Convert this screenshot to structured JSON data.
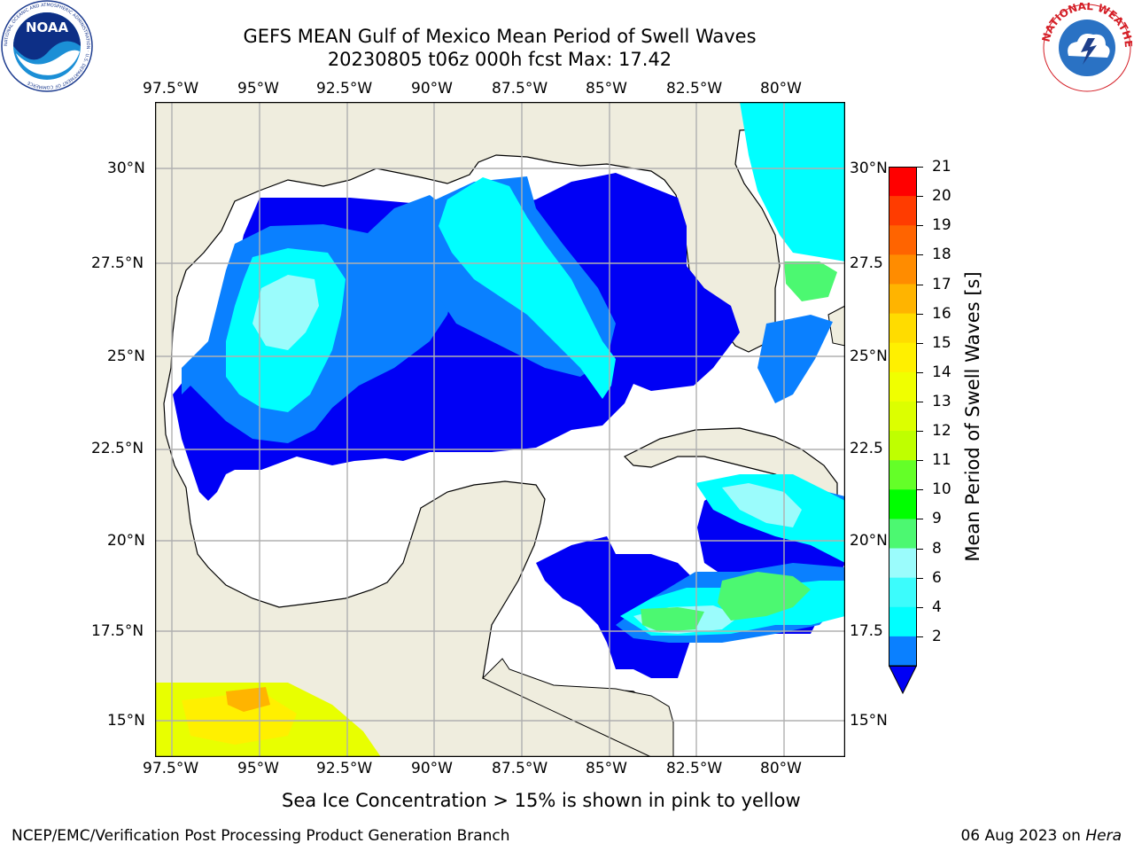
{
  "header": {
    "title_line1": "GEFS MEAN Gulf of Mexico Mean Period of Swell Waves",
    "title_line2": "20230805 t06z 000h fcst   Max: 17.42"
  },
  "logos": {
    "left": "NOAA",
    "left_ring": "NATIONAL OCEANIC AND ATMOSPHERIC ADMINISTRATION · U.S. DEPARTMENT OF COMMERCE",
    "right_ring": "NATIONAL WEATHER SERVICE"
  },
  "map": {
    "lon_labels": [
      "97.5°W",
      "95°W",
      "92.5°W",
      "90°W",
      "87.5°W",
      "85°W",
      "82.5°W",
      "80°W"
    ],
    "lat_labels_left": [
      "30°N",
      "27.5°N",
      "25°N",
      "22.5°N",
      "20°N",
      "17.5°N",
      "15°N"
    ],
    "lat_labels_right": [
      "30°N",
      "27.5",
      "25°N",
      "22.5",
      "20°N",
      "17.5",
      "15°N"
    ],
    "colors": {
      "land": "#efedde",
      "ocean_no_data": "#ffffff",
      "band_2_4": "#0000f5",
      "band_4_6": "#0a80ff",
      "band_6_8": "#00ffff",
      "band_8_9": "#9bfcfc",
      "band_9_10": "#4cf871",
      "gridline": "#b0b0b0"
    }
  },
  "colorbar": {
    "labels": [
      "21",
      "20",
      "19",
      "18",
      "17",
      "16",
      "15",
      "14",
      "13",
      "12",
      "11",
      "10",
      "9",
      "8",
      "6",
      "4",
      "2"
    ],
    "colors": [
      "#ff0000",
      "#ff3c00",
      "#ff6400",
      "#ff8c00",
      "#ffb400",
      "#ffdc00",
      "#fff000",
      "#f0ff00",
      "#dcff00",
      "#bfff00",
      "#64ff28",
      "#00ff00",
      "#4cf871",
      "#9bfcfc",
      "#3cfcfc",
      "#00ffff",
      "#0a80ff"
    ],
    "extend_color": "#0000f5",
    "title": "Mean Period of Swell Waves [s]"
  },
  "footer": {
    "note": "Sea Ice Concentration > 15% is shown in pink to yellow",
    "left": "NCEP/EMC/Verification Post Processing Product Generation Branch",
    "date": "06 Aug 2023 on",
    "host": "Hera"
  }
}
